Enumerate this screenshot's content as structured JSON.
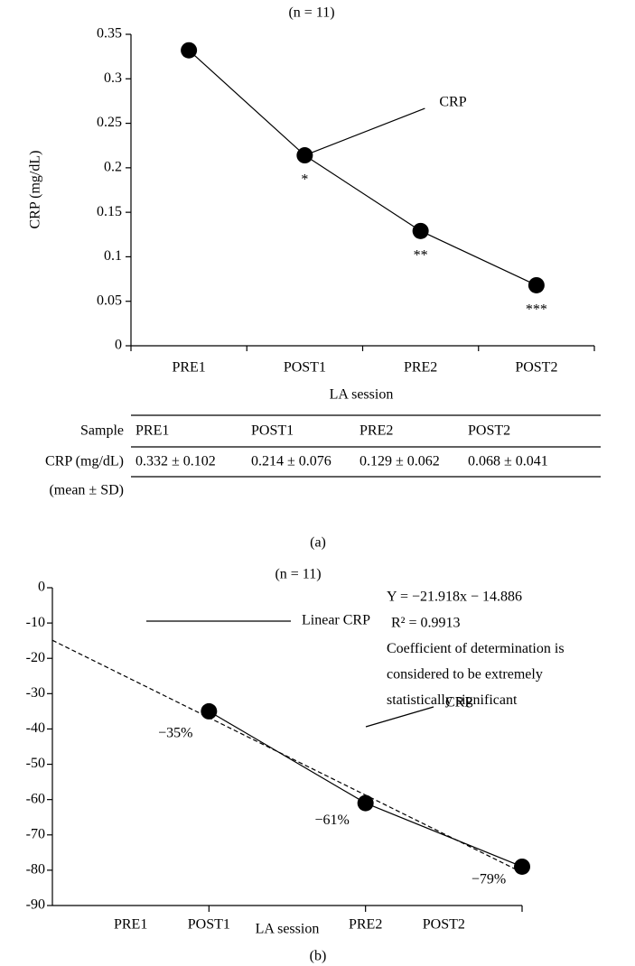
{
  "chart_data": [
    {
      "type": "line",
      "title": "(n = 11)",
      "y_label": "CRP (mg/dL)",
      "x_label": "LA session",
      "categories": [
        "PRE1",
        "POST1",
        "PRE2",
        "POST2"
      ],
      "series": [
        {
          "name": "CRP",
          "color": "#000000",
          "values": [
            0.332,
            0.214,
            0.129,
            0.068
          ]
        }
      ],
      "annotations": [
        {
          "text": "*",
          "category": "POST1"
        },
        {
          "text": "**",
          "category": "PRE2"
        },
        {
          "text": "***",
          "category": "POST2"
        }
      ],
      "ylim": [
        0,
        0.35
      ],
      "yticks": [
        0,
        0.05,
        0.1,
        0.15,
        0.2,
        0.25,
        0.3,
        0.35
      ]
    },
    {
      "type": "line",
      "title": "(n = 11)",
      "x_label": "LA session",
      "x": [
        1,
        2,
        3
      ],
      "series": [
        {
          "name": "CRP",
          "color": "#000000",
          "values": [
            -35,
            -61,
            -79
          ],
          "value_labels": [
            "−35%",
            "−61%",
            "−79%"
          ]
        }
      ],
      "trend": {
        "name": "Linear CRP",
        "slope": -21.918,
        "intercept": -14.886
      },
      "notes": [
        "Y = −21.918x − 14.886",
        "R² = 0.9913",
        "Coefficient of determination is",
        "considered to be extremely",
        "statistically significant"
      ],
      "xlim": [
        0,
        3
      ],
      "xticks": [
        {
          "value": 0.5,
          "label": "PRE1"
        },
        {
          "value": 1,
          "label": "POST1"
        },
        {
          "value": 2,
          "label": "PRE2"
        },
        {
          "value": 2.5,
          "label": "POST2"
        }
      ],
      "ylim": [
        -90,
        0
      ],
      "yticks": [
        0,
        -10,
        -20,
        -30,
        -40,
        -50,
        -60,
        -70,
        -80,
        -90
      ]
    }
  ],
  "table": {
    "header": [
      "Sample",
      "PRE1",
      "POST1",
      "PRE2",
      "POST2"
    ],
    "rows": [
      [
        "CRP (mg/dL)",
        "0.332 ± 0.102",
        "0.214 ± 0.076",
        "0.129 ± 0.062",
        "0.068 ± 0.041"
      ]
    ],
    "row_note": "(mean ± SD)"
  },
  "captions": [
    "(a)",
    "(b)"
  ]
}
